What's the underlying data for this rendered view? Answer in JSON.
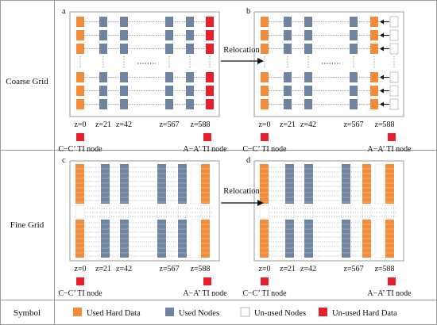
{
  "rows": [
    {
      "label": "Coarse Grid",
      "panels": [
        {
          "letter": "a",
          "z_labels": [
            "z=0",
            "z=21",
            "z=42",
            "z=567",
            "z=588"
          ],
          "node_left": "C−C’ TI node",
          "node_right": "A−A’ TI node"
        },
        {
          "letter": "b",
          "z_labels": [
            "z=0",
            "z=21",
            "z=42",
            "z=567",
            "z=588"
          ],
          "node_left": "C−C’ TI node",
          "node_right": "A−A’ TI node"
        }
      ],
      "arrow_label": "Relocation"
    },
    {
      "label": "Fine Grid",
      "panels": [
        {
          "letter": "c",
          "z_labels": [
            "z=0",
            "z=21",
            "z=42",
            "z=567",
            "z=588"
          ],
          "node_left": "C−C’ TI node",
          "node_right": "A−A’ TI node"
        },
        {
          "letter": "d",
          "z_labels": [
            "z=0",
            "z=21",
            "z=42",
            "z=567",
            "z=588"
          ],
          "node_left": "C−C’ TI node",
          "node_right": "A−A’ TI node"
        }
      ],
      "arrow_label": "Relocation"
    }
  ],
  "symbol": {
    "label": "Symbol",
    "items": [
      {
        "label": "Used Hard Data",
        "color": "#f28c3a"
      },
      {
        "label": "Used Nodes",
        "color": "#6e84a0"
      },
      {
        "label": "Un-used Nodes",
        "color": "#ffffff"
      },
      {
        "label": "Un-used Hard Data",
        "color": "#e8202a"
      }
    ]
  },
  "colors": {
    "used_hard_data": "#f28c3a",
    "used_nodes": "#6e84a0",
    "unused_nodes": "#ffffff",
    "unused_hard_data": "#e8202a",
    "frame": "#9a9a9a",
    "dotted": "#7a7a7a"
  }
}
